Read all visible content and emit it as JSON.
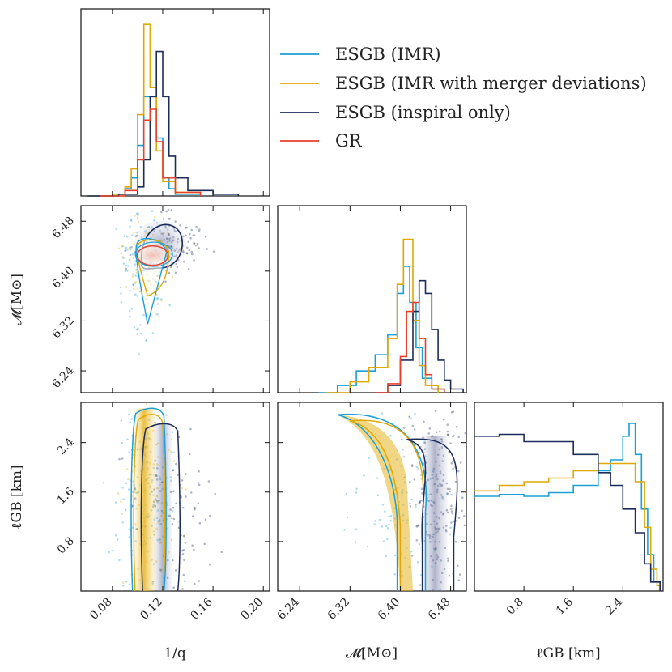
{
  "colors": {
    "ESGB_IMR": "#1a9fd6",
    "ESGB_IMR_merger": "#e0a800",
    "ESGB_inspiral": "#1c2d5a",
    "GR": "#e8412a"
  },
  "legend": [
    {
      "label": "ESGB (IMR)",
      "color": "#1a9fd6"
    },
    {
      "label": "ESGB (IMR with merger deviations)",
      "color": "#e0a800"
    },
    {
      "label": "ESGB (inspiral only)",
      "color": "#1c2d5a"
    },
    {
      "label": "GR",
      "color": "#e8412a"
    }
  ],
  "axis_labels": {
    "x1": "1/q",
    "x2": "𝓜[M⊙]",
    "x3": "ℓGB [km]",
    "y2": "𝓜[M⊙]",
    "y3": "ℓGB [km]"
  },
  "chart_data": {
    "type": "corner",
    "parameters": [
      "1/q",
      "𝓜[M⊙]",
      "ℓGB [km]"
    ],
    "ranges": {
      "inv_q": [
        0.055,
        0.205
      ],
      "chirp_mass": [
        6.205,
        6.505
      ],
      "l_gb": [
        0.0,
        3.05
      ]
    },
    "ticks": {
      "inv_q": {
        "values": [
          0.08,
          0.12,
          0.16,
          0.2
        ],
        "labels": [
          "0.08",
          "0.12",
          "0.16",
          "0.20"
        ]
      },
      "chirp_mass": {
        "values": [
          6.24,
          6.32,
          6.4,
          6.48
        ],
        "labels": [
          "6.24",
          "6.32",
          "6.40",
          "6.48"
        ]
      },
      "l_gb": {
        "values": [
          0.8,
          1.6,
          2.4
        ],
        "labels": [
          "0.8",
          "1.6",
          "2.4"
        ]
      }
    },
    "series": [
      {
        "name": "ESGB (IMR)",
        "key": "ESGB_IMR",
        "inv_q_hist": [
          [
            0.06,
            0
          ],
          [
            0.08,
            0.01
          ],
          [
            0.09,
            0.04
          ],
          [
            0.095,
            0.1
          ],
          [
            0.1,
            0.28
          ],
          [
            0.105,
            0.55
          ],
          [
            0.11,
            0.55
          ],
          [
            0.115,
            0.32
          ],
          [
            0.12,
            0.1
          ],
          [
            0.125,
            0.04
          ],
          [
            0.13,
            0.01
          ],
          [
            0.15,
            0
          ]
        ],
        "chirp_mass_hist": [
          [
            6.27,
            0
          ],
          [
            6.3,
            0.04
          ],
          [
            6.33,
            0.12
          ],
          [
            6.36,
            0.21
          ],
          [
            6.38,
            0.32
          ],
          [
            6.395,
            0.55
          ],
          [
            6.405,
            0.7
          ],
          [
            6.415,
            0.5
          ],
          [
            6.425,
            0.25
          ],
          [
            6.435,
            0.08
          ],
          [
            6.45,
            0.02
          ],
          [
            6.47,
            0
          ]
        ],
        "l_gb_hist": [
          [
            0.0,
            0.52
          ],
          [
            0.4,
            0.53
          ],
          [
            0.8,
            0.52
          ],
          [
            1.2,
            0.54
          ],
          [
            1.6,
            0.58
          ],
          [
            2.0,
            0.66
          ],
          [
            2.2,
            0.72
          ],
          [
            2.4,
            0.85
          ],
          [
            2.5,
            0.92
          ],
          [
            2.6,
            0.75
          ],
          [
            2.7,
            0.45
          ],
          [
            2.8,
            0.2
          ],
          [
            2.9,
            0.05
          ],
          [
            3.0,
            0.0
          ]
        ]
      },
      {
        "name": "ESGB (IMR with merger deviations)",
        "key": "ESGB_IMR_merger",
        "inv_q_hist": [
          [
            0.06,
            0
          ],
          [
            0.08,
            0.01
          ],
          [
            0.09,
            0.05
          ],
          [
            0.095,
            0.15
          ],
          [
            0.1,
            0.45
          ],
          [
            0.105,
            0.95
          ],
          [
            0.11,
            0.6
          ],
          [
            0.115,
            0.25
          ],
          [
            0.12,
            0.08
          ],
          [
            0.13,
            0.02
          ],
          [
            0.15,
            0
          ]
        ],
        "chirp_mass_hist": [
          [
            6.28,
            0
          ],
          [
            6.32,
            0.06
          ],
          [
            6.35,
            0.14
          ],
          [
            6.38,
            0.3
          ],
          [
            6.395,
            0.6
          ],
          [
            6.405,
            0.85
          ],
          [
            6.41,
            0.85
          ],
          [
            6.42,
            0.4
          ],
          [
            6.43,
            0.15
          ],
          [
            6.44,
            0.04
          ],
          [
            6.46,
            0
          ]
        ],
        "l_gb_hist": [
          [
            0.0,
            0.55
          ],
          [
            0.4,
            0.58
          ],
          [
            0.8,
            0.6
          ],
          [
            1.2,
            0.62
          ],
          [
            1.6,
            0.66
          ],
          [
            2.0,
            0.7
          ],
          [
            2.4,
            0.7
          ],
          [
            2.6,
            0.6
          ],
          [
            2.75,
            0.35
          ],
          [
            2.85,
            0.12
          ],
          [
            2.95,
            0.03
          ],
          [
            3.0,
            0.0
          ]
        ]
      },
      {
        "name": "ESGB (inspiral only)",
        "key": "ESGB_inspiral",
        "inv_q_hist": [
          [
            0.06,
            0
          ],
          [
            0.085,
            0.01
          ],
          [
            0.1,
            0.05
          ],
          [
            0.105,
            0.2
          ],
          [
            0.11,
            0.55
          ],
          [
            0.115,
            0.8
          ],
          [
            0.12,
            0.55
          ],
          [
            0.125,
            0.22
          ],
          [
            0.13,
            0.1
          ],
          [
            0.14,
            0.03
          ],
          [
            0.16,
            0.01
          ],
          [
            0.18,
            0
          ]
        ],
        "chirp_mass_hist": [
          [
            6.36,
            0
          ],
          [
            6.38,
            0.04
          ],
          [
            6.4,
            0.18
          ],
          [
            6.42,
            0.45
          ],
          [
            6.43,
            0.62
          ],
          [
            6.44,
            0.55
          ],
          [
            6.45,
            0.35
          ],
          [
            6.46,
            0.18
          ],
          [
            6.47,
            0.07
          ],
          [
            6.48,
            0.02
          ],
          [
            6.5,
            0
          ]
        ],
        "l_gb_hist": [
          [
            0.0,
            0.85
          ],
          [
            0.4,
            0.86
          ],
          [
            0.8,
            0.82
          ],
          [
            1.2,
            0.82
          ],
          [
            1.6,
            0.75
          ],
          [
            2.0,
            0.65
          ],
          [
            2.2,
            0.58
          ],
          [
            2.4,
            0.45
          ],
          [
            2.6,
            0.32
          ],
          [
            2.75,
            0.15
          ],
          [
            2.85,
            0.05
          ],
          [
            3.0,
            0.0
          ]
        ]
      },
      {
        "name": "GR",
        "key": "GR",
        "inv_q_hist": [
          [
            0.07,
            0
          ],
          [
            0.09,
            0.03
          ],
          [
            0.1,
            0.2
          ],
          [
            0.105,
            0.42
          ],
          [
            0.11,
            0.48
          ],
          [
            0.115,
            0.3
          ],
          [
            0.12,
            0.1
          ],
          [
            0.13,
            0.02
          ],
          [
            0.15,
            0
          ]
        ],
        "chirp_mass_hist": [
          [
            6.36,
            0
          ],
          [
            6.38,
            0.05
          ],
          [
            6.4,
            0.2
          ],
          [
            6.41,
            0.45
          ],
          [
            6.42,
            0.5
          ],
          [
            6.43,
            0.3
          ],
          [
            6.44,
            0.1
          ],
          [
            6.45,
            0.02
          ],
          [
            6.47,
            0
          ]
        ]
      }
    ],
    "contours_2d": {
      "inv_q_vs_chirp_mass": [
        {
          "series": "ESGB_inspiral",
          "center": [
            0.118,
            6.443
          ],
          "extent": [
            0.018,
            0.037
          ]
        },
        {
          "series": "ESGB_IMR",
          "center": [
            0.112,
            6.405
          ],
          "extent": [
            0.016,
            0.09
          ]
        },
        {
          "series": "ESGB_IMR_merger",
          "center": [
            0.115,
            6.41
          ],
          "extent": [
            0.015,
            0.06
          ]
        },
        {
          "series": "GR",
          "center": [
            0.112,
            6.425
          ],
          "extent": [
            0.012,
            0.017
          ]
        }
      ],
      "inv_q_vs_l_gb": [
        {
          "series": "ESGB_IMR",
          "center": [
            0.108,
            1.5
          ],
          "extent": [
            0.016,
            1.6
          ]
        },
        {
          "series": "ESGB_IMR_merger",
          "center": [
            0.109,
            1.5
          ],
          "extent": [
            0.013,
            1.55
          ]
        },
        {
          "series": "ESGB_inspiral",
          "center": [
            0.117,
            1.4
          ],
          "extent": [
            0.017,
            1.45
          ]
        }
      ],
      "chirp_mass_vs_l_gb": [
        {
          "series": "ESGB_IMR",
          "shape": "banana",
          "upper_left": [
            6.3,
            2.85
          ],
          "lower": [
            6.405,
            0
          ]
        },
        {
          "series": "ESGB_IMR_merger",
          "shape": "banana",
          "upper_left": [
            6.32,
            2.75
          ],
          "lower": [
            6.41,
            0
          ]
        },
        {
          "series": "ESGB_inspiral",
          "shape": "banana",
          "upper_left": [
            6.4,
            2.5
          ],
          "lower": [
            6.445,
            0
          ]
        }
      ]
    }
  }
}
